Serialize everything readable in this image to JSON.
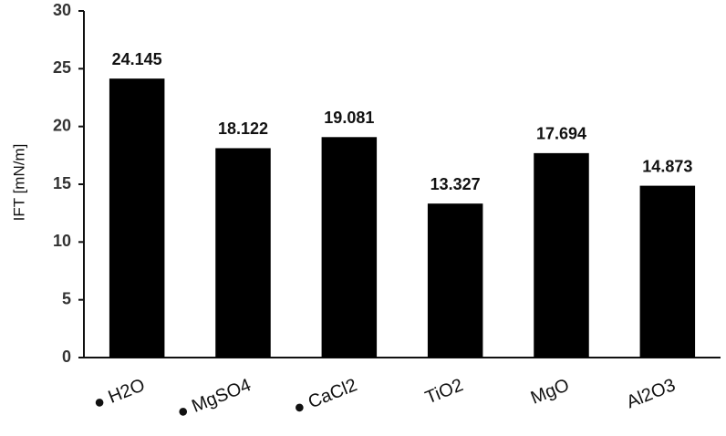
{
  "chart_data": {
    "type": "bar",
    "y_label": "IFT [mN/m]",
    "categories": [
      "● H2O",
      "● MgSO4",
      "● CaCl2",
      "TiO2",
      "MgO",
      "Al2O3"
    ],
    "values": [
      24.145,
      18.122,
      19.081,
      13.327,
      17.694,
      14.873
    ],
    "color": "#000000",
    "ylim": [
      0,
      30
    ],
    "yticks": [
      0,
      5,
      10,
      15,
      20,
      25,
      30
    ],
    "grid": false
  }
}
